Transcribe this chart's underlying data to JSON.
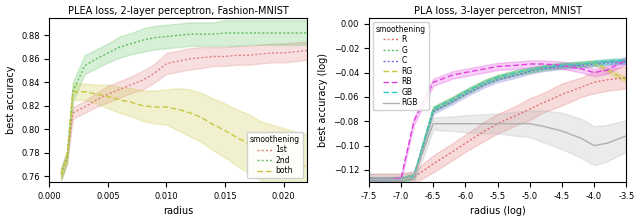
{
  "left": {
    "title": "PLEA loss, 2-layer perceptron, Fashion-MNIST",
    "xlabel": "radius",
    "ylabel": "best accuracy",
    "xlim": [
      0.0,
      0.022
    ],
    "ylim": [
      0.755,
      0.895
    ],
    "xticks": [
      0.0,
      0.005,
      0.01,
      0.015,
      0.02
    ],
    "xtick_labels": [
      "0.000",
      "0.005",
      "0.010",
      "0.015",
      "0.020"
    ],
    "legend_title": "smoothening",
    "legend_loc": "lower right",
    "series": [
      {
        "label": "1st",
        "color": "#e08080",
        "linestyle": "dotted",
        "x": [
          0.001,
          0.0015,
          0.002,
          0.003,
          0.004,
          0.005,
          0.006,
          0.007,
          0.008,
          0.009,
          0.01,
          0.011,
          0.012,
          0.013,
          0.014,
          0.015,
          0.016,
          0.017,
          0.018,
          0.019,
          0.02,
          0.021,
          0.022
        ],
        "y": [
          0.762,
          0.776,
          0.814,
          0.819,
          0.825,
          0.83,
          0.834,
          0.838,
          0.842,
          0.848,
          0.856,
          0.858,
          0.86,
          0.861,
          0.862,
          0.862,
          0.863,
          0.863,
          0.864,
          0.865,
          0.865,
          0.866,
          0.867
        ],
        "y_lo": [
          0.757,
          0.771,
          0.809,
          0.814,
          0.819,
          0.823,
          0.827,
          0.831,
          0.834,
          0.84,
          0.847,
          0.849,
          0.851,
          0.852,
          0.854,
          0.854,
          0.855,
          0.855,
          0.856,
          0.857,
          0.857,
          0.858,
          0.859
        ],
        "y_hi": [
          0.767,
          0.781,
          0.819,
          0.824,
          0.831,
          0.837,
          0.841,
          0.845,
          0.85,
          0.856,
          0.865,
          0.867,
          0.869,
          0.87,
          0.87,
          0.87,
          0.871,
          0.871,
          0.872,
          0.873,
          0.873,
          0.874,
          0.875
        ]
      },
      {
        "label": "2nd",
        "color": "#60c060",
        "linestyle": "dotted",
        "x": [
          0.001,
          0.0015,
          0.002,
          0.003,
          0.004,
          0.005,
          0.006,
          0.007,
          0.008,
          0.009,
          0.01,
          0.011,
          0.012,
          0.013,
          0.014,
          0.015,
          0.016,
          0.017,
          0.018,
          0.019,
          0.02,
          0.021,
          0.022
        ],
        "y": [
          0.762,
          0.776,
          0.832,
          0.854,
          0.86,
          0.865,
          0.87,
          0.873,
          0.876,
          0.878,
          0.879,
          0.88,
          0.881,
          0.881,
          0.881,
          0.882,
          0.882,
          0.882,
          0.882,
          0.882,
          0.882,
          0.882,
          0.882
        ],
        "y_lo": [
          0.757,
          0.771,
          0.824,
          0.847,
          0.852,
          0.857,
          0.861,
          0.864,
          0.866,
          0.868,
          0.869,
          0.87,
          0.871,
          0.871,
          0.871,
          0.871,
          0.871,
          0.872,
          0.872,
          0.872,
          0.872,
          0.872,
          0.872
        ],
        "y_hi": [
          0.767,
          0.781,
          0.84,
          0.863,
          0.868,
          0.873,
          0.879,
          0.882,
          0.886,
          0.888,
          0.889,
          0.89,
          0.891,
          0.891,
          0.891,
          0.893,
          0.893,
          0.893,
          0.893,
          0.893,
          0.893,
          0.893,
          0.893
        ]
      },
      {
        "label": "both",
        "color": "#c8c840",
        "linestyle": "dashed",
        "x": [
          0.001,
          0.0015,
          0.002,
          0.003,
          0.004,
          0.005,
          0.006,
          0.007,
          0.008,
          0.009,
          0.01,
          0.011,
          0.012,
          0.013,
          0.014,
          0.015,
          0.016,
          0.017,
          0.018,
          0.019,
          0.02,
          0.021,
          0.022
        ],
        "y": [
          0.762,
          0.776,
          0.832,
          0.832,
          0.83,
          0.828,
          0.825,
          0.823,
          0.82,
          0.819,
          0.819,
          0.817,
          0.814,
          0.81,
          0.804,
          0.799,
          0.793,
          0.788,
          0.782,
          0.778,
          0.774,
          0.771,
          0.768
        ],
        "y_lo": [
          0.757,
          0.771,
          0.825,
          0.825,
          0.822,
          0.818,
          0.814,
          0.811,
          0.807,
          0.805,
          0.804,
          0.799,
          0.794,
          0.789,
          0.782,
          0.776,
          0.769,
          0.763,
          0.757,
          0.752,
          0.747,
          0.744,
          0.74
        ],
        "y_hi": [
          0.767,
          0.781,
          0.839,
          0.839,
          0.838,
          0.838,
          0.836,
          0.835,
          0.833,
          0.833,
          0.834,
          0.835,
          0.834,
          0.831,
          0.826,
          0.822,
          0.817,
          0.813,
          0.807,
          0.804,
          0.801,
          0.798,
          0.796
        ]
      }
    ]
  },
  "right": {
    "title": "PLA loss, 3-layer percetron, MNIST",
    "xlabel": "radius (log)",
    "ylabel": "best accuracy (log)",
    "xlim": [
      -7.5,
      -3.5
    ],
    "ylim": [
      -0.13,
      0.005
    ],
    "xticks": [
      -7.5,
      -7.0,
      -6.5,
      -6.0,
      -5.5,
      -5.0,
      -4.5,
      -4.0,
      -3.5
    ],
    "xtick_labels": [
      "-7.5",
      "-7.0",
      "-6.5",
      "-6.0",
      "-5.5",
      "-5.0",
      "-4.5",
      "-4.0",
      "-3.5"
    ],
    "legend_title": "smoothening",
    "legend_loc": "upper left",
    "series": [
      {
        "label": "R",
        "color": "#e07070",
        "linestyle": "dotted",
        "x": [
          -7.5,
          -7.2,
          -7.0,
          -6.8,
          -6.5,
          -6.2,
          -6.0,
          -5.7,
          -5.5,
          -5.2,
          -5.0,
          -4.8,
          -4.5,
          -4.2,
          -4.0,
          -3.8,
          -3.5
        ],
        "y": [
          -0.128,
          -0.128,
          -0.128,
          -0.126,
          -0.115,
          -0.105,
          -0.098,
          -0.088,
          -0.082,
          -0.075,
          -0.07,
          -0.065,
          -0.058,
          -0.052,
          -0.048,
          -0.046,
          -0.044
        ],
        "y_lo": [
          -0.133,
          -0.133,
          -0.133,
          -0.131,
          -0.122,
          -0.112,
          -0.105,
          -0.096,
          -0.09,
          -0.083,
          -0.079,
          -0.073,
          -0.067,
          -0.06,
          -0.057,
          -0.055,
          -0.053
        ],
        "y_hi": [
          -0.123,
          -0.123,
          -0.123,
          -0.121,
          -0.108,
          -0.098,
          -0.091,
          -0.08,
          -0.074,
          -0.067,
          -0.061,
          -0.057,
          -0.049,
          -0.044,
          -0.039,
          -0.037,
          -0.035
        ]
      },
      {
        "label": "G",
        "color": "#60c060",
        "linestyle": "dotted",
        "x": [
          -7.5,
          -7.2,
          -7.0,
          -6.8,
          -6.5,
          -6.2,
          -6.0,
          -5.7,
          -5.5,
          -5.2,
          -5.0,
          -4.8,
          -4.5,
          -4.2,
          -4.0,
          -3.8,
          -3.5
        ],
        "y": [
          -0.128,
          -0.128,
          -0.128,
          -0.125,
          -0.07,
          -0.062,
          -0.056,
          -0.048,
          -0.044,
          -0.04,
          -0.038,
          -0.036,
          -0.034,
          -0.033,
          -0.032,
          -0.031,
          -0.03
        ],
        "y_lo": [
          -0.13,
          -0.13,
          -0.13,
          -0.127,
          -0.072,
          -0.064,
          -0.058,
          -0.05,
          -0.046,
          -0.042,
          -0.04,
          -0.038,
          -0.036,
          -0.035,
          -0.034,
          -0.033,
          -0.032
        ],
        "y_hi": [
          -0.126,
          -0.126,
          -0.126,
          -0.123,
          -0.068,
          -0.06,
          -0.054,
          -0.046,
          -0.042,
          -0.038,
          -0.036,
          -0.034,
          -0.032,
          -0.031,
          -0.03,
          -0.029,
          -0.028
        ]
      },
      {
        "label": "C",
        "color": "#7070e0",
        "linestyle": "dotted",
        "x": [
          -7.5,
          -7.2,
          -7.0,
          -6.8,
          -6.5,
          -6.2,
          -6.0,
          -5.7,
          -5.5,
          -5.2,
          -5.0,
          -4.8,
          -4.5,
          -4.2,
          -4.0,
          -3.8,
          -3.5
        ],
        "y": [
          -0.128,
          -0.128,
          -0.128,
          -0.125,
          -0.072,
          -0.064,
          -0.058,
          -0.05,
          -0.046,
          -0.042,
          -0.039,
          -0.037,
          -0.035,
          -0.034,
          -0.033,
          -0.032,
          -0.031
        ],
        "y_lo": [
          -0.13,
          -0.13,
          -0.13,
          -0.127,
          -0.074,
          -0.066,
          -0.06,
          -0.052,
          -0.048,
          -0.044,
          -0.041,
          -0.039,
          -0.037,
          -0.036,
          -0.035,
          -0.034,
          -0.033
        ],
        "y_hi": [
          -0.126,
          -0.126,
          -0.126,
          -0.123,
          -0.07,
          -0.062,
          -0.056,
          -0.048,
          -0.044,
          -0.04,
          -0.037,
          -0.035,
          -0.033,
          -0.032,
          -0.031,
          -0.03,
          -0.029
        ]
      },
      {
        "label": "RG",
        "color": "#c8c840",
        "linestyle": "dashed",
        "x": [
          -7.5,
          -7.2,
          -7.0,
          -6.8,
          -6.5,
          -6.2,
          -6.0,
          -5.7,
          -5.5,
          -5.2,
          -5.0,
          -4.8,
          -4.5,
          -4.2,
          -4.0,
          -3.8,
          -3.5
        ],
        "y": [
          -0.128,
          -0.128,
          -0.128,
          -0.125,
          -0.07,
          -0.062,
          -0.056,
          -0.048,
          -0.044,
          -0.04,
          -0.038,
          -0.036,
          -0.034,
          -0.033,
          -0.032,
          -0.038,
          -0.046
        ],
        "y_lo": [
          -0.13,
          -0.13,
          -0.13,
          -0.127,
          -0.072,
          -0.064,
          -0.058,
          -0.05,
          -0.046,
          -0.042,
          -0.04,
          -0.038,
          -0.036,
          -0.035,
          -0.034,
          -0.04,
          -0.048
        ],
        "y_hi": [
          -0.126,
          -0.126,
          -0.126,
          -0.123,
          -0.068,
          -0.06,
          -0.054,
          -0.046,
          -0.042,
          -0.038,
          -0.036,
          -0.034,
          -0.032,
          -0.031,
          -0.03,
          -0.036,
          -0.044
        ]
      },
      {
        "label": "RB",
        "color": "#e040e0",
        "linestyle": "dashed",
        "x": [
          -7.5,
          -7.2,
          -7.0,
          -6.8,
          -6.5,
          -6.2,
          -6.0,
          -5.7,
          -5.5,
          -5.2,
          -5.0,
          -4.8,
          -4.5,
          -4.2,
          -4.0,
          -3.8,
          -3.5
        ],
        "y": [
          -0.128,
          -0.128,
          -0.127,
          -0.08,
          -0.048,
          -0.042,
          -0.04,
          -0.037,
          -0.035,
          -0.034,
          -0.033,
          -0.033,
          -0.034,
          -0.037,
          -0.04,
          -0.038,
          -0.03
        ],
        "y_lo": [
          -0.13,
          -0.13,
          -0.129,
          -0.083,
          -0.051,
          -0.045,
          -0.043,
          -0.04,
          -0.038,
          -0.037,
          -0.036,
          -0.036,
          -0.037,
          -0.04,
          -0.043,
          -0.041,
          -0.033
        ],
        "y_hi": [
          -0.126,
          -0.126,
          -0.125,
          -0.077,
          -0.045,
          -0.039,
          -0.037,
          -0.034,
          -0.032,
          -0.031,
          -0.03,
          -0.03,
          -0.031,
          -0.034,
          -0.037,
          -0.035,
          -0.027
        ]
      },
      {
        "label": "GB",
        "color": "#30c8c8",
        "linestyle": "dashed",
        "x": [
          -7.5,
          -7.2,
          -7.0,
          -6.8,
          -6.5,
          -6.2,
          -6.0,
          -5.7,
          -5.5,
          -5.2,
          -5.0,
          -4.8,
          -4.5,
          -4.2,
          -4.0,
          -3.8,
          -3.5
        ],
        "y": [
          -0.128,
          -0.128,
          -0.128,
          -0.125,
          -0.07,
          -0.062,
          -0.056,
          -0.048,
          -0.044,
          -0.04,
          -0.038,
          -0.036,
          -0.034,
          -0.033,
          -0.032,
          -0.031,
          -0.03
        ],
        "y_lo": [
          -0.13,
          -0.13,
          -0.13,
          -0.127,
          -0.072,
          -0.064,
          -0.058,
          -0.05,
          -0.046,
          -0.042,
          -0.04,
          -0.038,
          -0.036,
          -0.035,
          -0.034,
          -0.033,
          -0.032
        ],
        "y_hi": [
          -0.126,
          -0.126,
          -0.126,
          -0.123,
          -0.068,
          -0.06,
          -0.054,
          -0.046,
          -0.042,
          -0.038,
          -0.036,
          -0.034,
          -0.032,
          -0.031,
          -0.03,
          -0.029,
          -0.028
        ]
      },
      {
        "label": "RGB",
        "color": "#b0b0b0",
        "linestyle": "solid",
        "x": [
          -7.5,
          -7.2,
          -7.0,
          -6.8,
          -6.5,
          -6.2,
          -6.0,
          -5.7,
          -5.5,
          -5.2,
          -5.0,
          -4.8,
          -4.5,
          -4.2,
          -4.0,
          -3.8,
          -3.5
        ],
        "y": [
          -0.128,
          -0.128,
          -0.128,
          -0.126,
          -0.082,
          -0.082,
          -0.082,
          -0.082,
          -0.082,
          -0.082,
          -0.082,
          -0.084,
          -0.088,
          -0.094,
          -0.1,
          -0.098,
          -0.092
        ],
        "y_lo": [
          -0.133,
          -0.133,
          -0.133,
          -0.131,
          -0.087,
          -0.088,
          -0.089,
          -0.09,
          -0.09,
          -0.092,
          -0.093,
          -0.097,
          -0.103,
          -0.11,
          -0.116,
          -0.113,
          -0.105
        ],
        "y_hi": [
          -0.123,
          -0.123,
          -0.123,
          -0.121,
          -0.077,
          -0.076,
          -0.075,
          -0.074,
          -0.074,
          -0.072,
          -0.071,
          -0.071,
          -0.073,
          -0.078,
          -0.084,
          -0.083,
          -0.079
        ]
      }
    ]
  }
}
